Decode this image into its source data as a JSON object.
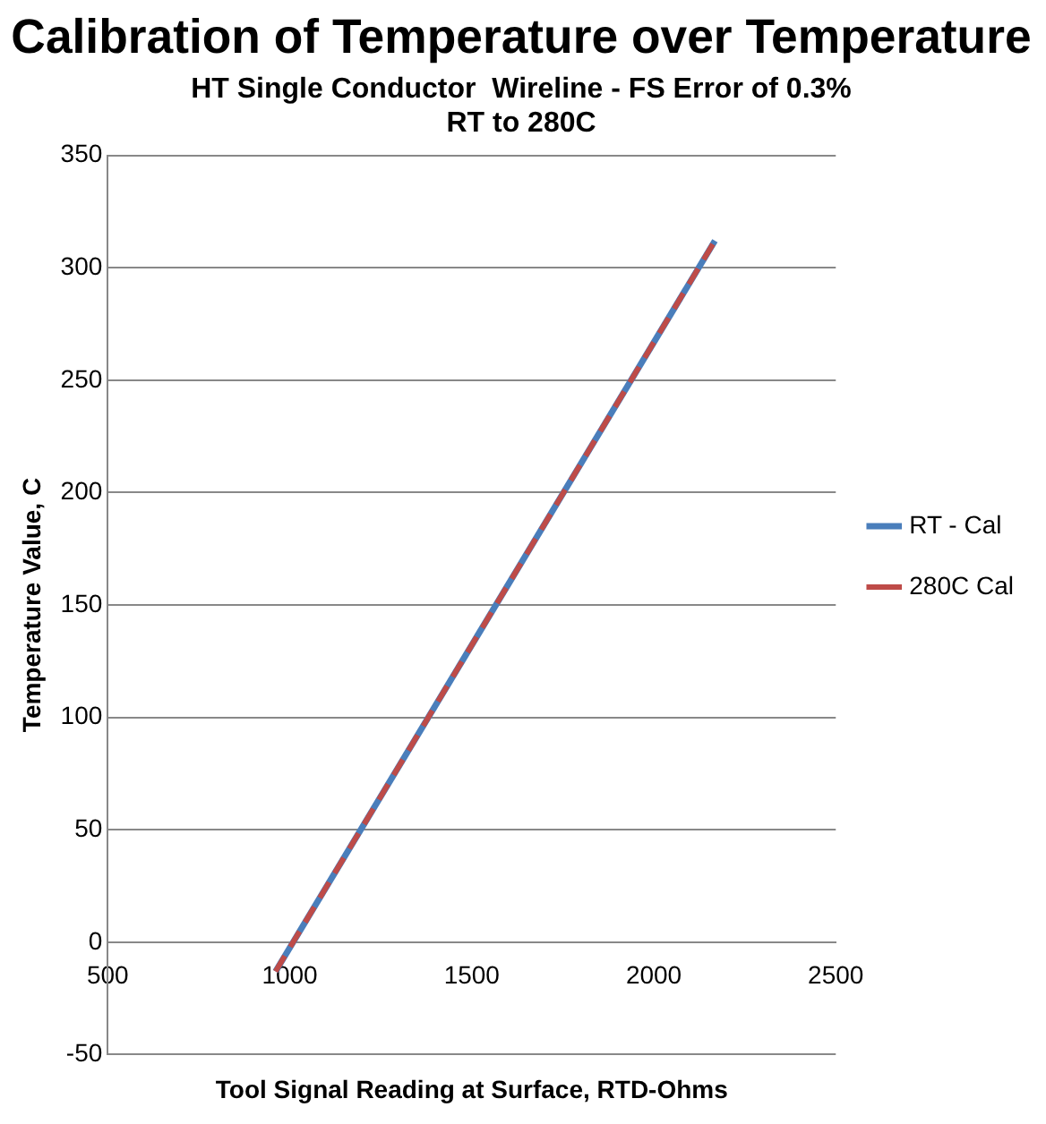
{
  "chart_data": {
    "type": "line",
    "title": "Calibration of Temperature over Temperature",
    "subtitle": "HT Single Conductor  Wireline - FS Error of 0.3%",
    "annotations": [
      "RT to 280C"
    ],
    "xlabel": "Tool Signal Reading at Surface, RTD-Ohms",
    "ylabel": "Temperature Value, C",
    "series": [
      {
        "name": "RT - Cal",
        "color": "#4a7ebb",
        "values": [
          -13,
          312
        ],
        "line_style": "solid"
      },
      {
        "name": "280C Cal",
        "color": "#be4b48",
        "values": [
          -13,
          312
        ],
        "line_style": "dashed"
      }
    ],
    "x": [
      961,
      2168
    ],
    "xlim": [
      500,
      2500
    ],
    "xticks": [
      500,
      1000,
      1500,
      2000,
      2500
    ],
    "ylim": [
      -50,
      350
    ],
    "yticks": [
      -50,
      0,
      50,
      100,
      150,
      200,
      250,
      300,
      350
    ],
    "grid": "y",
    "legend": "right",
    "marker": "none"
  }
}
